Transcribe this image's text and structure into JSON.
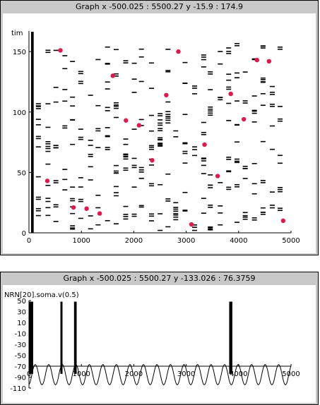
{
  "window1": {
    "title": "Graph  x -500.025 : 5500.27  y -15.9 : 174.9"
  },
  "window2": {
    "title": "Graph  x -500.025 : 5500.27  y -133.026 : 76.3759"
  },
  "chart_data": [
    {
      "type": "scatter",
      "title": "",
      "label": "tim",
      "xlim": [
        0,
        5000
      ],
      "ylim": [
        0,
        160
      ],
      "xticks": [
        "0",
        "1000",
        "2000",
        "3000",
        "4000",
        "5000"
      ],
      "yticks": [
        "0",
        "50",
        "100",
        "150"
      ],
      "marker_color": "#e0194a",
      "markers": [
        {
          "x": 600,
          "y": 151
        },
        {
          "x": 2850,
          "y": 150
        },
        {
          "x": 4350,
          "y": 143
        },
        {
          "x": 4580,
          "y": 142
        },
        {
          "x": 1600,
          "y": 130
        },
        {
          "x": 2620,
          "y": 114
        },
        {
          "x": 3850,
          "y": 115
        },
        {
          "x": 1850,
          "y": 93
        },
        {
          "x": 4100,
          "y": 94
        },
        {
          "x": 2100,
          "y": 89
        },
        {
          "x": 3350,
          "y": 73
        },
        {
          "x": 2350,
          "y": 60
        },
        {
          "x": 350,
          "y": 43
        },
        {
          "x": 3600,
          "y": 47
        },
        {
          "x": 850,
          "y": 21
        },
        {
          "x": 1100,
          "y": 20
        },
        {
          "x": 1350,
          "y": 16
        },
        {
          "x": 3100,
          "y": 7
        },
        {
          "x": 4850,
          "y": 10
        }
      ]
    },
    {
      "type": "line",
      "title": "",
      "label": "NRN[20].soma.v(0.5)",
      "xlim": [
        0,
        5000
      ],
      "ylim": [
        -110,
        50
      ],
      "xticks": [
        "0",
        "1000",
        "2000",
        "3000",
        "4000",
        "5000"
      ],
      "yticks": [
        "50",
        "30",
        "10",
        "-10",
        "-30",
        "-50",
        "-70",
        "-90",
        "-110"
      ],
      "baseline": -70,
      "oscillation": {
        "min": -104,
        "max": -67,
        "period_ms": 258
      },
      "spike_bursts": [
        {
          "start": 0,
          "end": 80
        },
        {
          "start": 600,
          "end": 640
        },
        {
          "start": 860,
          "end": 910
        },
        {
          "start": 3820,
          "end": 3880
        }
      ],
      "spike_peak": 48
    }
  ]
}
